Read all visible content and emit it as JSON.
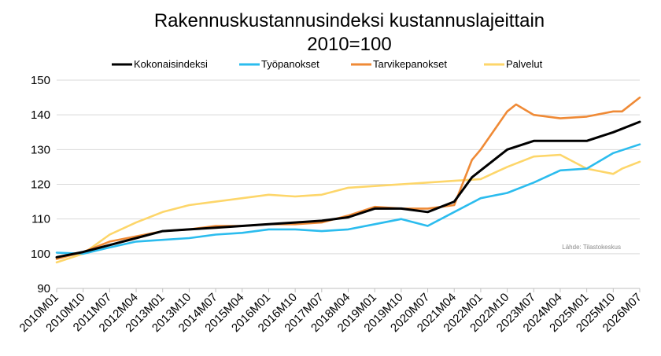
{
  "chart_data": {
    "type": "line",
    "title": "Rakennuskustannusindeksi kustannuslajeittain",
    "subtitle": "2010=100",
    "source": "Lähde: Tilastokeskus",
    "ylim": [
      90,
      150
    ],
    "yticks": [
      90,
      100,
      110,
      120,
      130,
      140,
      150
    ],
    "x_tick_labels": [
      "2010M01",
      "2010M10",
      "2011M07",
      "2012M04",
      "2013M01",
      "2013M10",
      "2014M07",
      "2015M04",
      "2016M01",
      "2016M10",
      "2017M07",
      "2018M04",
      "2019M01",
      "2019M10",
      "2020M07",
      "2021M04",
      "2022M01",
      "2022M10",
      "2023M07",
      "2024M04",
      "2025M01",
      "2025M10",
      "2026M07"
    ],
    "x_start": "2010M01",
    "x_end": "2026M07",
    "grid": "horizontal",
    "legend_position": "top",
    "series": [
      {
        "name": "Kokonaisindeksi",
        "color": "#000000",
        "points": [
          [
            "2010M01",
            99
          ],
          [
            "2010M10",
            100.5
          ],
          [
            "2011M07",
            102.5
          ],
          [
            "2012M04",
            104.5
          ],
          [
            "2013M01",
            106.5
          ],
          [
            "2013M10",
            107
          ],
          [
            "2014M07",
            107.5
          ],
          [
            "2015M04",
            108
          ],
          [
            "2016M01",
            108.5
          ],
          [
            "2016M10",
            109
          ],
          [
            "2017M07",
            109.5
          ],
          [
            "2018M04",
            110.5
          ],
          [
            "2019M01",
            113
          ],
          [
            "2019M10",
            113
          ],
          [
            "2020M07",
            112
          ],
          [
            "2021M04",
            115
          ],
          [
            "2021M10",
            122
          ],
          [
            "2022M01",
            124
          ],
          [
            "2022M10",
            130
          ],
          [
            "2023M07",
            132.5
          ],
          [
            "2024M04",
            132.5
          ],
          [
            "2025M01",
            132.5
          ],
          [
            "2025M10",
            135
          ],
          [
            "2026M07",
            138
          ]
        ]
      },
      {
        "name": "Työpanokset",
        "color": "#2bbcee",
        "points": [
          [
            "2010M01",
            100.3
          ],
          [
            "2010M10",
            100
          ],
          [
            "2011M07",
            101.8
          ],
          [
            "2012M04",
            103.5
          ],
          [
            "2013M01",
            104
          ],
          [
            "2013M10",
            104.5
          ],
          [
            "2014M07",
            105.5
          ],
          [
            "2015M04",
            106
          ],
          [
            "2016M01",
            107
          ],
          [
            "2016M10",
            107
          ],
          [
            "2017M07",
            106.5
          ],
          [
            "2018M04",
            107
          ],
          [
            "2019M01",
            108.5
          ],
          [
            "2019M10",
            110
          ],
          [
            "2020M07",
            108
          ],
          [
            "2021M04",
            112
          ],
          [
            "2022M01",
            116
          ],
          [
            "2022M10",
            117.5
          ],
          [
            "2023M07",
            120.5
          ],
          [
            "2024M04",
            124
          ],
          [
            "2025M01",
            124.5
          ],
          [
            "2025M10",
            129
          ],
          [
            "2026M07",
            131.5
          ]
        ]
      },
      {
        "name": "Tarvikepanokset",
        "color": "#ef8a36",
        "points": [
          [
            "2010M01",
            98.5
          ],
          [
            "2010M10",
            100.5
          ],
          [
            "2011M07",
            103.5
          ],
          [
            "2012M04",
            105
          ],
          [
            "2013M01",
            106.5
          ],
          [
            "2013M10",
            107
          ],
          [
            "2014M07",
            108
          ],
          [
            "2015M04",
            108
          ],
          [
            "2016M01",
            108.5
          ],
          [
            "2016M10",
            108.5
          ],
          [
            "2017M07",
            109
          ],
          [
            "2018M04",
            111
          ],
          [
            "2019M01",
            113.5
          ],
          [
            "2019M10",
            113
          ],
          [
            "2020M07",
            113
          ],
          [
            "2021M04",
            114
          ],
          [
            "2021M10",
            127
          ],
          [
            "2022M01",
            130
          ],
          [
            "2022M10",
            141
          ],
          [
            "2023M01",
            143
          ],
          [
            "2023M07",
            140
          ],
          [
            "2024M04",
            139
          ],
          [
            "2025M01",
            139.5
          ],
          [
            "2025M10",
            141
          ],
          [
            "2026M01",
            141
          ],
          [
            "2026M07",
            145
          ]
        ]
      },
      {
        "name": "Palvelut",
        "color": "#fdd66a",
        "points": [
          [
            "2010M01",
            97.5
          ],
          [
            "2010M10",
            100
          ],
          [
            "2011M07",
            105.5
          ],
          [
            "2012M04",
            109
          ],
          [
            "2013M01",
            112
          ],
          [
            "2013M10",
            114
          ],
          [
            "2014M07",
            115
          ],
          [
            "2015M04",
            116
          ],
          [
            "2016M01",
            117
          ],
          [
            "2016M10",
            116.5
          ],
          [
            "2017M07",
            117
          ],
          [
            "2018M04",
            119
          ],
          [
            "2019M01",
            119.5
          ],
          [
            "2019M10",
            120
          ],
          [
            "2020M07",
            120.5
          ],
          [
            "2021M04",
            121
          ],
          [
            "2022M01",
            121.5
          ],
          [
            "2022M10",
            125
          ],
          [
            "2023M07",
            128
          ],
          [
            "2024M04",
            128.5
          ],
          [
            "2025M01",
            124.5
          ],
          [
            "2025M10",
            123
          ],
          [
            "2026M01",
            124.5
          ],
          [
            "2026M07",
            126.5
          ]
        ]
      }
    ]
  }
}
